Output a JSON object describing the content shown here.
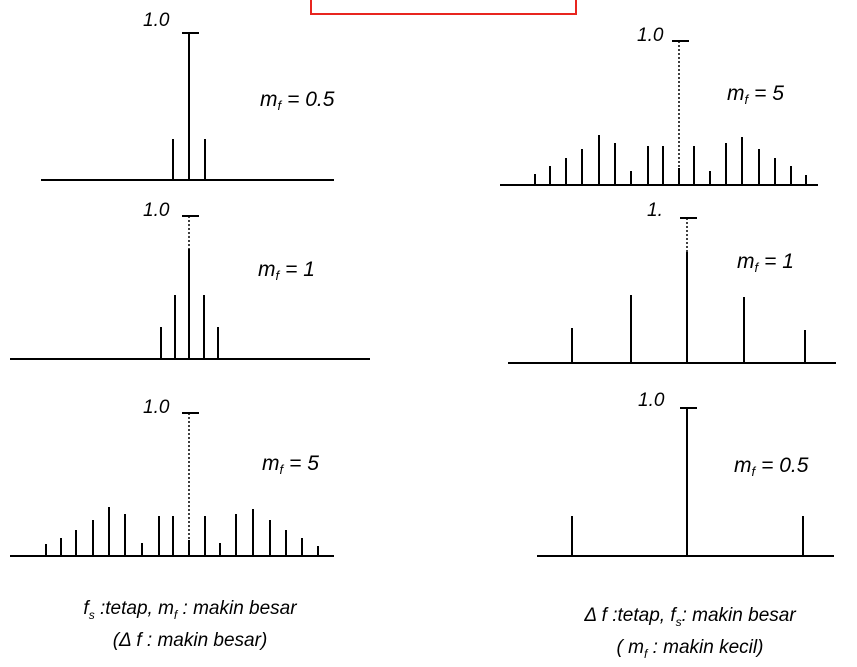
{
  "header_box_color": "#e8251f",
  "left_column": {
    "panels": [
      {
        "peak_label": "1.0",
        "mf_symbol": "m",
        "mf_subscript": "f",
        "mf_value": "= 0.5"
      },
      {
        "peak_label": "1.0",
        "mf_symbol": "m",
        "mf_subscript": "f",
        "mf_value": "= 1"
      },
      {
        "peak_label": "1.0",
        "mf_symbol": "m",
        "mf_subscript": "f",
        "mf_value": "= 5"
      }
    ],
    "caption_line1": {
      "fs_symbol": "f",
      "fs_sub": "s",
      "fs_text": " :tetap,  ",
      "mf_symbol": "m",
      "mf_sub": "f",
      "mf_text": " :  makin besar"
    },
    "caption_line2": {
      "text": "(Δ  f : makin besar)"
    }
  },
  "right_column": {
    "panels": [
      {
        "peak_label": "1.0",
        "mf_symbol": "m",
        "mf_subscript": "f",
        "mf_value": "= 5"
      },
      {
        "peak_label": "1.",
        "mf_symbol": "m",
        "mf_subscript": "f",
        "mf_value": "= 1"
      },
      {
        "peak_label": "1.0",
        "mf_symbol": "m",
        "mf_subscript": "f",
        "mf_value": "= 0.5"
      }
    ],
    "caption_line1": {
      "delta_text": "Δ  f :tetap,  ",
      "fs_symbol": "f",
      "fs_sub": "s",
      "fs_text": ":  makin besar"
    },
    "caption_line2": {
      "open": "( ",
      "mf_symbol": "m",
      "mf_sub": "f",
      "mf_text": " : makin kecil)"
    }
  }
}
